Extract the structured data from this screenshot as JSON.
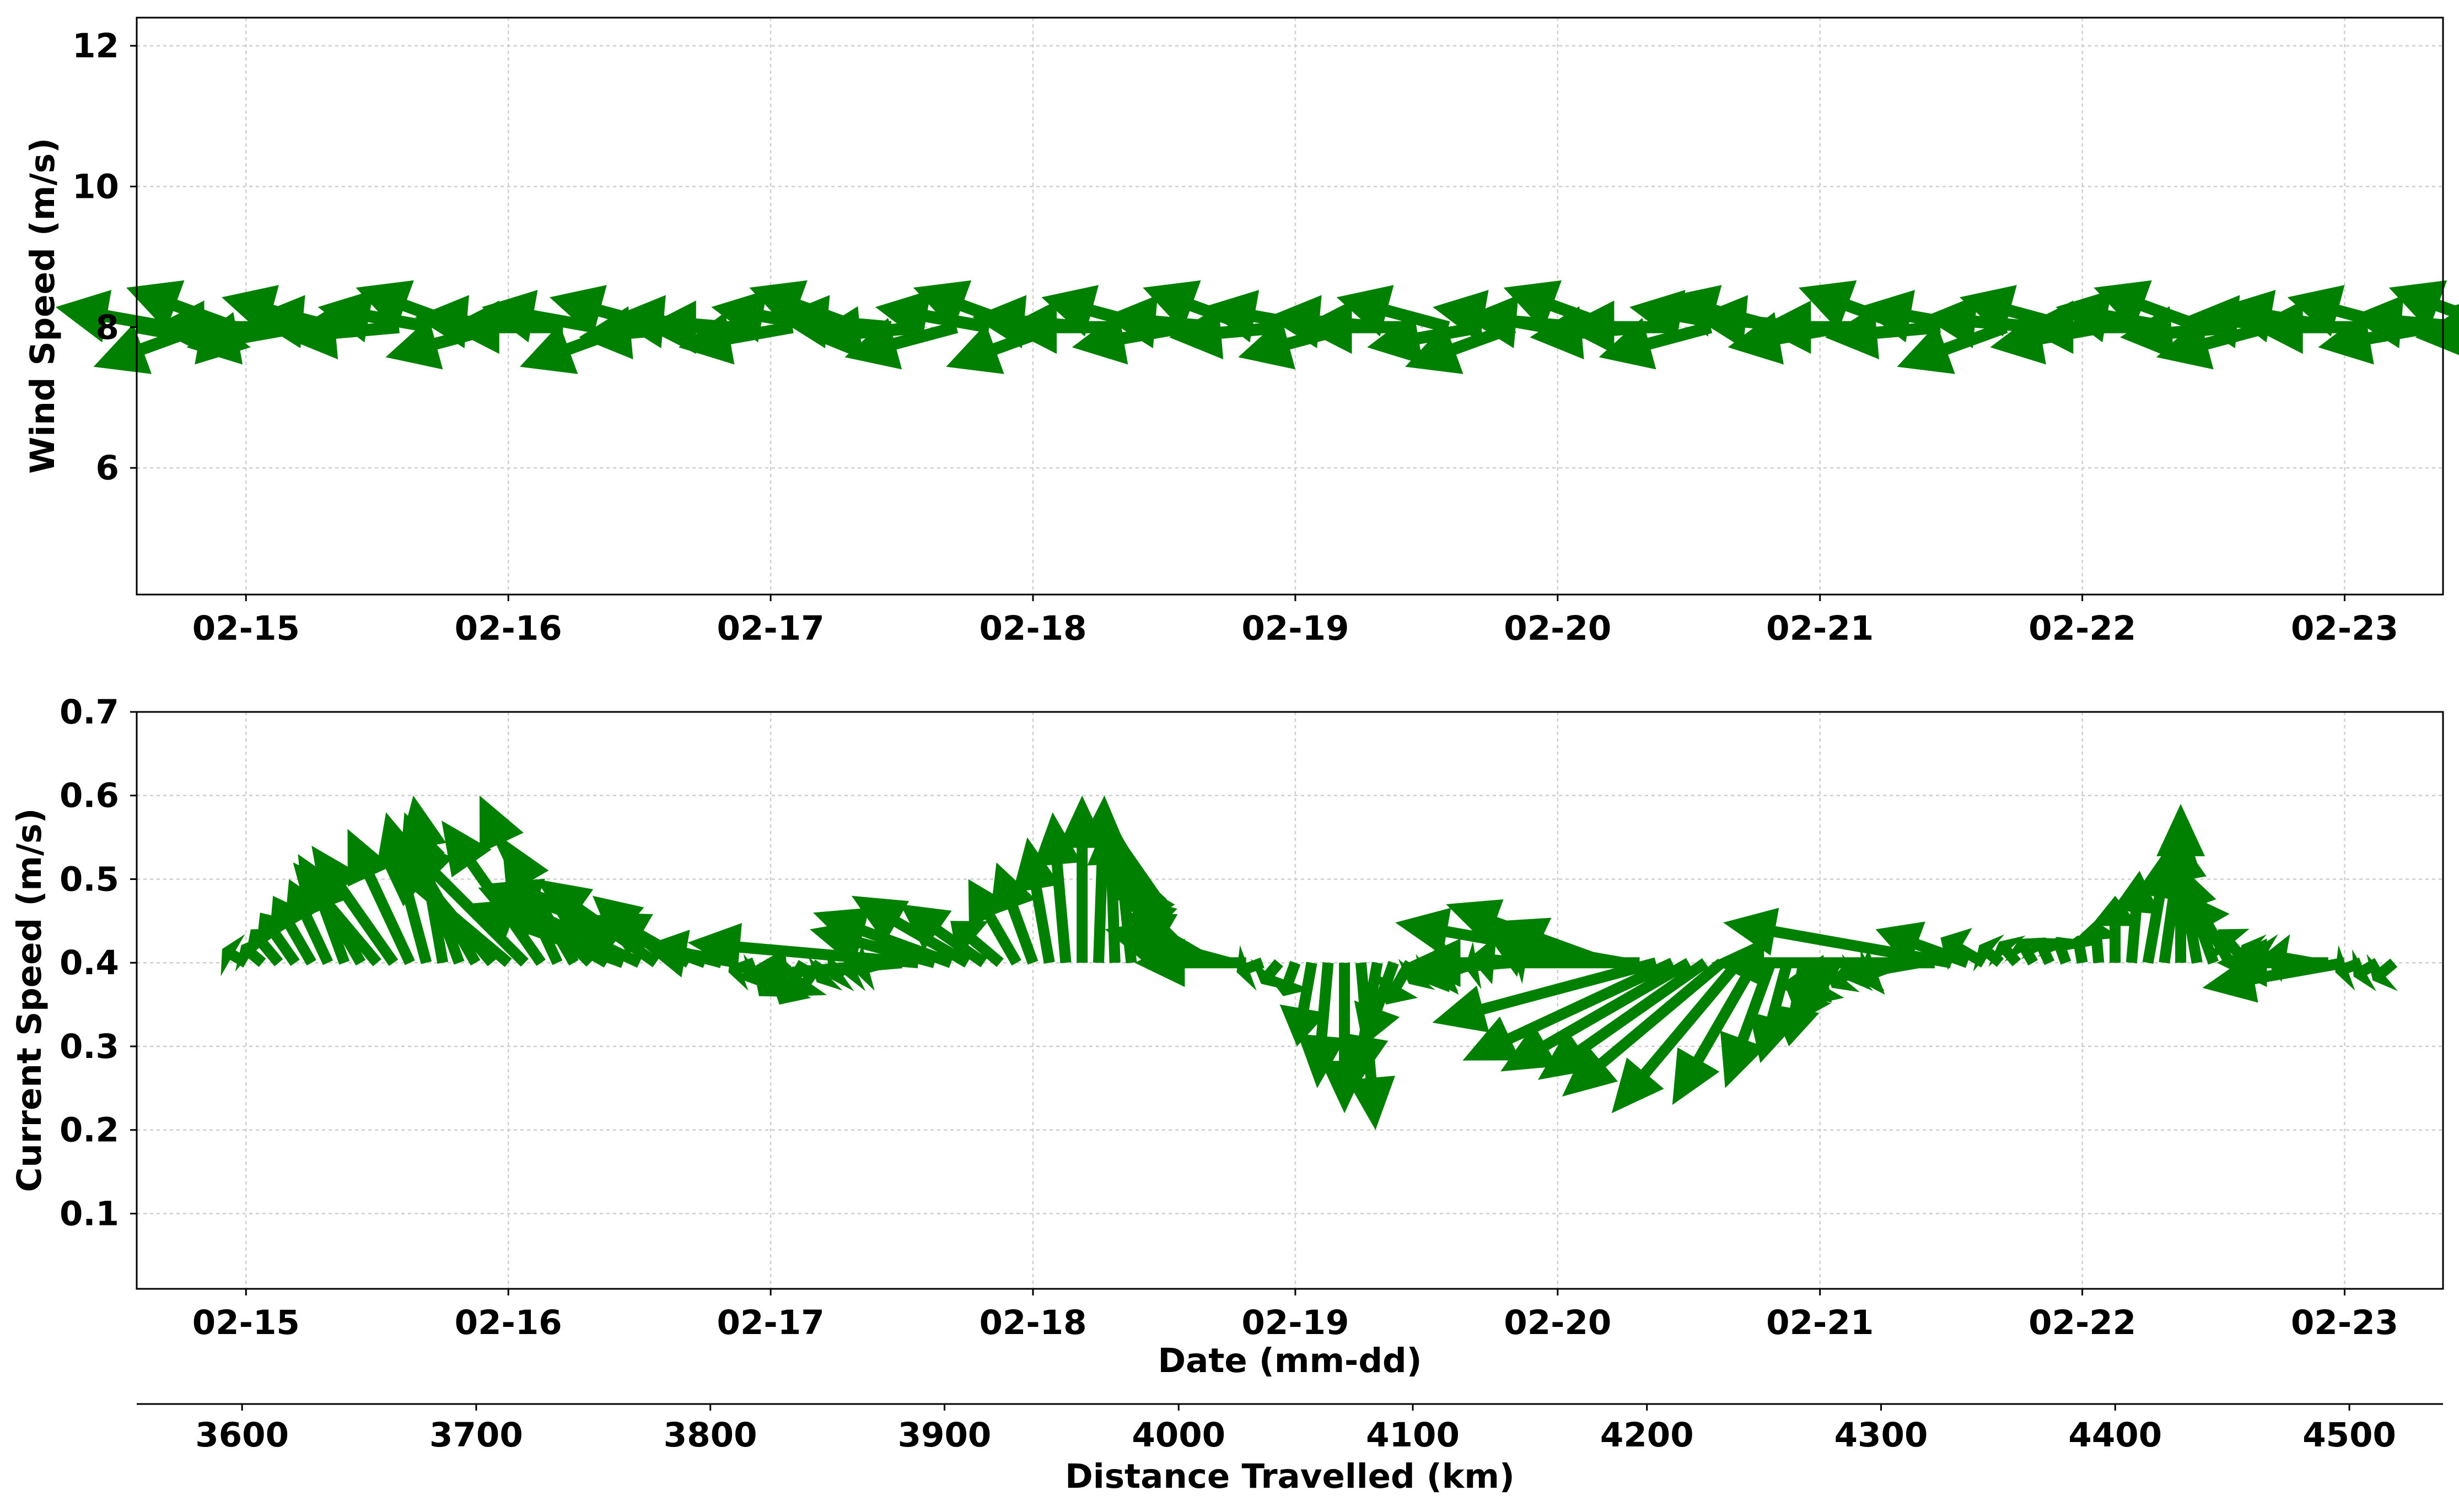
{
  "chart_data": [
    {
      "type": "quiver",
      "ylabel": "Wind Speed (m/s)",
      "xlabel": "",
      "xlim": [
        "02-14 14:00",
        "02-23 09:00"
      ],
      "ylim": [
        4.2,
        12.4
      ],
      "yticks": [
        6,
        8,
        10,
        12
      ],
      "xticks": [
        "02-15",
        "02-16",
        "02-17",
        "02-18",
        "02-19",
        "02-20",
        "02-21",
        "02-22",
        "02-23"
      ],
      "grid": true,
      "arrow_color": "#008000",
      "reference_level": 8,
      "x_start": "02-14 14:00",
      "x_step_hours": 3,
      "arrow_dir_deg": [
        -10,
        170,
        200,
        160,
        180,
        190,
        165,
        175,
        185,
        170,
        160,
        195,
        175,
        180,
        170,
        200,
        165,
        185,
        175,
        180,
        190,
        170,
        160,
        175,
        185,
        195,
        170,
        160,
        200,
        175,
        180,
        165,
        190,
        175,
        160,
        185,
        170,
        195,
        175,
        180,
        165,
        190,
        200,
        170,
        175,
        160,
        185,
        180,
        195,
        170,
        165,
        175,
        190,
        180,
        160,
        185,
        170,
        200,
        175,
        165,
        190,
        180,
        170,
        160,
        185,
        195,
        175,
        170,
        180,
        165,
        190,
        175,
        160,
        185,
        170
      ]
    },
    {
      "type": "quiver",
      "ylabel": "Current Speed (m/s)",
      "xlabel": "Date (mm-dd)",
      "xlim": [
        "02-14 14:00",
        "02-23 09:00"
      ],
      "ylim": [
        0.01,
        0.7
      ],
      "yticks": [
        0.1,
        0.2,
        0.3,
        0.4,
        0.5,
        0.6,
        0.7
      ],
      "xticks": [
        "02-15",
        "02-16",
        "02-17",
        "02-18",
        "02-19",
        "02-20",
        "02-21",
        "02-22",
        "02-23"
      ],
      "grid": true,
      "arrow_color": "#008000",
      "reference_level": 0.4,
      "x_start": "02-15 00:00",
      "x_step_hours": 1.5,
      "speeds": [
        0.41,
        0.42,
        0.44,
        0.46,
        0.48,
        0.5,
        0.52,
        0.53,
        0.52,
        0.54,
        0.56,
        0.58,
        0.6,
        0.58,
        0.56,
        0.55,
        0.53,
        0.55,
        0.57,
        0.6,
        0.55,
        0.5,
        0.48,
        0.47,
        0.49,
        0.5,
        0.48,
        0.46,
        0.5,
        0.45,
        0.42,
        0.4,
        0.38,
        0.36,
        0.35,
        0.36,
        0.38,
        0.39,
        0.4,
        0.41,
        0.43,
        0.45,
        0.44,
        0.46,
        0.48,
        0.47,
        0.45,
        0.5,
        0.52,
        0.55,
        0.58,
        0.6,
        0.6,
        0.58,
        0.56,
        0.54,
        0.52,
        0.5,
        0.48,
        0.46,
        0.44,
        0.42,
        0.4,
        0.38,
        0.36,
        0.3,
        0.25,
        0.22,
        0.2,
        0.25,
        0.3,
        0.35,
        0.38,
        0.4,
        0.39,
        0.38,
        0.4,
        0.42,
        0.41,
        0.4,
        0.38,
        0.36,
        0.35,
        0.33,
        0.31,
        0.3,
        0.29,
        0.28,
        0.27,
        0.26,
        0.24,
        0.22,
        0.23,
        0.25,
        0.28,
        0.3,
        0.33,
        0.35,
        0.37,
        0.4,
        0.41,
        0.42,
        0.43,
        0.44,
        0.45,
        0.44,
        0.43,
        0.42,
        0.41,
        0.4,
        0.4,
        0.4,
        0.38,
        0.35,
        0.32,
        0.29,
        0.26,
        0.23,
        0.21,
        0.24,
        0.28,
        0.32,
        0.36,
        0.38,
        0.4,
        0.41,
        0.39,
        0.38,
        0.37,
        0.4,
        0.41,
        0.4
      ],
      "dirs_deg": [
        150,
        140,
        130,
        125,
        120,
        115,
        110,
        120,
        130,
        125,
        115,
        105,
        100,
        110,
        120,
        130,
        140,
        135,
        125,
        115,
        120,
        135,
        150,
        160,
        155,
        145,
        140,
        150,
        160,
        165,
        170,
        200,
        220,
        230,
        240,
        235,
        225,
        215,
        205,
        195,
        185,
        175,
        165,
        160,
        150,
        145,
        140,
        120,
        110,
        100,
        95,
        90,
        88,
        92,
        96,
        100,
        110,
        120,
        135,
        150,
        165,
        180,
        200,
        230,
        250,
        260,
        265,
        270,
        275,
        260,
        250,
        240,
        230,
        220,
        210,
        200,
        190,
        185,
        175,
        170,
        165,
        160,
        155,
        160,
        170,
        180,
        195,
        205,
        210,
        215,
        220,
        230,
        240,
        250,
        255,
        260,
        250,
        240,
        230,
        220,
        210,
        200,
        190,
        180,
        170,
        160,
        150,
        140,
        130,
        120,
        115,
        110,
        100,
        95,
        90,
        85,
        80,
        82,
        90,
        100,
        110,
        120,
        130,
        140,
        150,
        160,
        170,
        180,
        190,
        200,
        210,
        220
      ]
    }
  ],
  "distance_axis": {
    "label": "Distance Travelled (km)",
    "ticks": [
      3600,
      3700,
      3800,
      3900,
      4000,
      4100,
      4200,
      4300,
      4400,
      4500
    ],
    "xlim": [
      3555,
      4540
    ]
  }
}
